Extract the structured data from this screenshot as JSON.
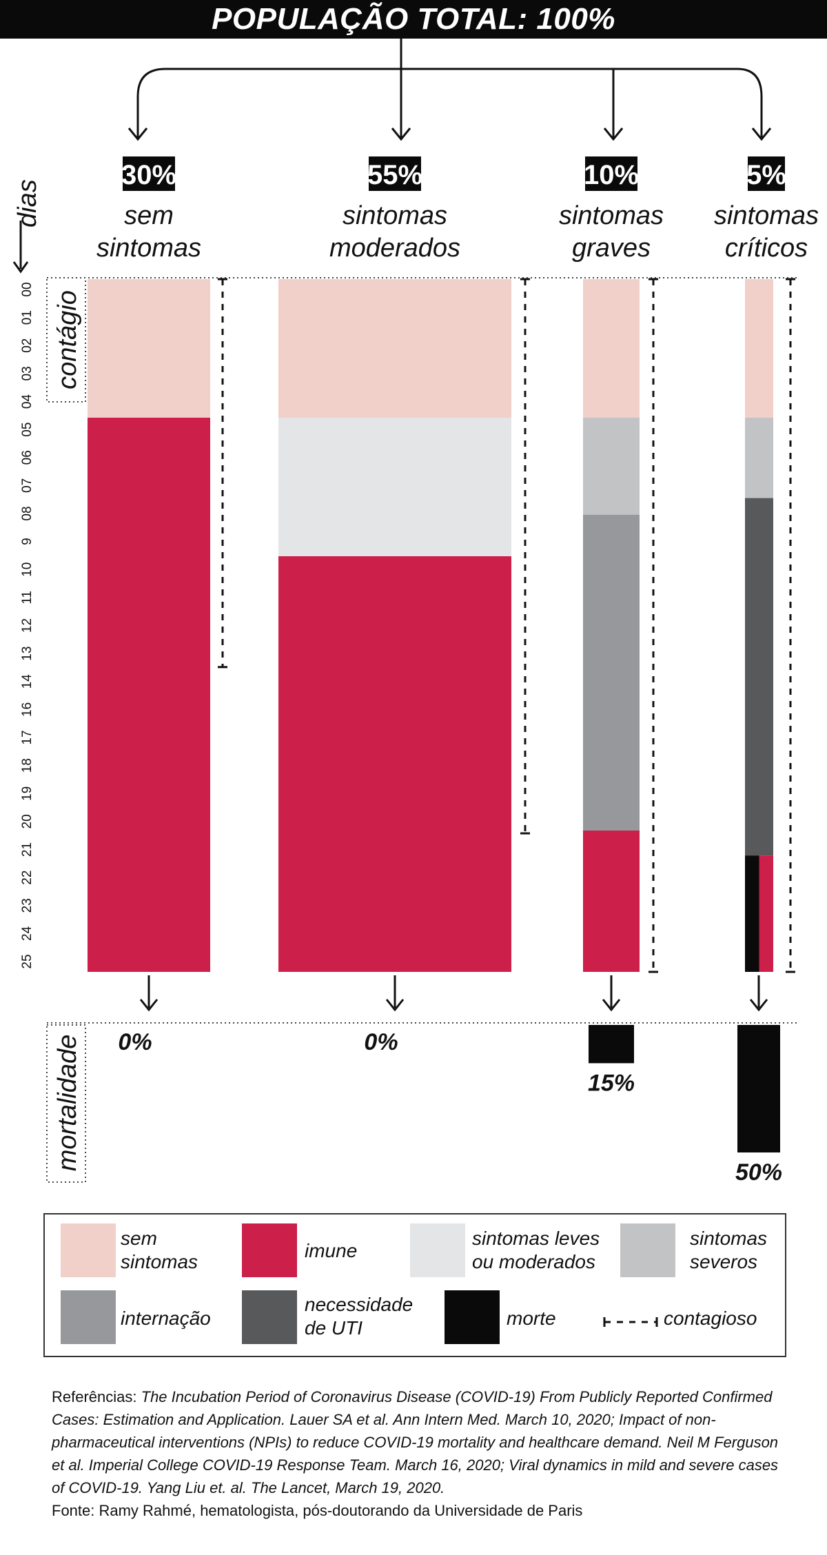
{
  "header": {
    "title": "POPULAÇÃO TOTAL: 100%"
  },
  "axis": {
    "label": "dias",
    "days": [
      "00",
      "01",
      "02",
      "03",
      "04",
      "05",
      "06",
      "07",
      "08",
      "9",
      "10",
      "11",
      "12",
      "13",
      "14",
      "16",
      "17",
      "18",
      "19",
      "20",
      "21",
      "22",
      "23",
      "24",
      "25"
    ],
    "contagio_label": "contágio",
    "mortalidade_label": "mortalidade"
  },
  "groups": [
    {
      "percent": "30%",
      "label_line1": "sem",
      "label_line2": "sintomas",
      "segments": [
        {
          "state": "sem_sintomas",
          "from_day": 0,
          "to_day": 5
        },
        {
          "state": "imune",
          "from_day": 5,
          "to_day": 25
        }
      ],
      "contagious_from_day": 0,
      "contagious_to_day": 14,
      "mortality": "0%",
      "mortality_fraction": 0
    },
    {
      "percent": "55%",
      "label_line1": "sintomas",
      "label_line2": "moderados",
      "segments": [
        {
          "state": "sem_sintomas",
          "from_day": 0,
          "to_day": 5
        },
        {
          "state": "sintomas_leves",
          "from_day": 5,
          "to_day": 10
        },
        {
          "state": "imune",
          "from_day": 10,
          "to_day": 25
        }
      ],
      "contagious_from_day": 0,
      "contagious_to_day": 20,
      "mortality": "0%",
      "mortality_fraction": 0
    },
    {
      "percent": "10%",
      "label_line1": "sintomas",
      "label_line2": "graves",
      "segments": [
        {
          "state": "sem_sintomas",
          "from_day": 0,
          "to_day": 5
        },
        {
          "state": "sintomas_severos",
          "from_day": 5,
          "to_day": 8.5
        },
        {
          "state": "internacao",
          "from_day": 8.5,
          "to_day": 19.9
        },
        {
          "state": "imune",
          "from_day": 19.9,
          "to_day": 25
        }
      ],
      "contagious_from_day": 0,
      "contagious_to_day": 25,
      "mortality": "15%",
      "mortality_fraction": 0.15
    },
    {
      "percent": "5%",
      "label_line1": "sintomas",
      "label_line2": "críticos",
      "segments": [
        {
          "state": "sem_sintomas",
          "from_day": 0,
          "to_day": 5
        },
        {
          "state": "sintomas_severos",
          "from_day": 5,
          "to_day": 7.9
        },
        {
          "state": "uti",
          "from_day": 7.9,
          "to_day": 20.8
        },
        {
          "state": "morte",
          "from_day": 20.8,
          "to_day": 25,
          "share": 0.5
        },
        {
          "state": "imune",
          "from_day": 20.8,
          "to_day": 25,
          "share": 0.5
        }
      ],
      "contagious_from_day": 0,
      "contagious_to_day": 25,
      "mortality": "50%",
      "mortality_fraction": 0.5
    }
  ],
  "colors": {
    "sem_sintomas": "#f1d0c9",
    "imune": "#cc1f4a",
    "sintomas_leves": "#e4e5e7",
    "sintomas_severos": "#c2c3c5",
    "internacao": "#97989b",
    "uti": "#58595b",
    "morte": "#0a0a0a"
  },
  "legend": {
    "sem_sintomas": "sem\nsintomas",
    "imune": "imune",
    "sintomas_leves": "sintomas leves\nou moderados",
    "sintomas_severos": "sintomas\nseveros",
    "internacao": "internação",
    "uti": "necessidade\nde UTI",
    "morte": "morte",
    "contagioso": "contagioso"
  },
  "references": {
    "lead": "Referências: ",
    "ref1_title": "The Incubation Period of Coronavirus Disease (COVID-19) From Publicly Reported Confirmed Cases: Estimation and Application. Lauer SA et al. Ann Intern Med. March 10, 2020;",
    "ref2": "Impact of non-pharmaceutical interventions (NPIs) to reduce COVID-19 mortality and healthcare demand. Neil M Ferguson et al. Imperial College COVID-19 Response Team. March 16, 2020; Viral dynamics in mild and severe cases of COVID-19. Yang Liu et. al. The Lancet, March 19, 2020.",
    "source": "Fonte: Ramy Rahmé, hematologista, pós-doutorando da Universidade de Paris"
  }
}
